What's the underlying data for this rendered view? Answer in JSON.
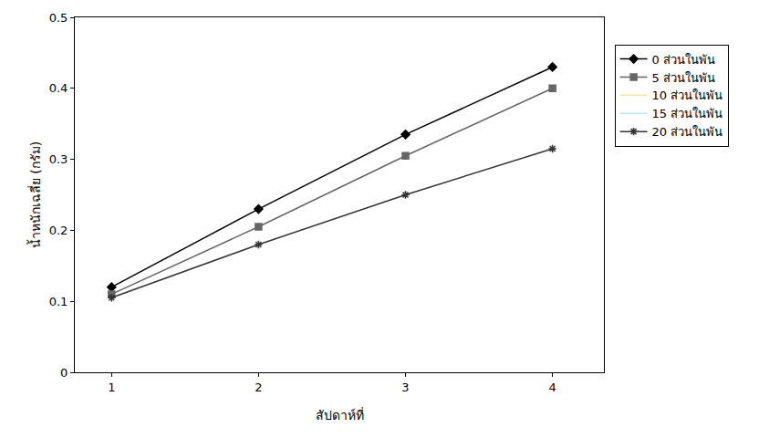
{
  "chart_data": {
    "type": "line",
    "x_label": "สัปดาห์ที่",
    "y_label": "น้ำหนักเฉลี่ย (กรัม)",
    "x": [
      1,
      2,
      3,
      4
    ],
    "xlim": [
      0.75,
      4.35
    ],
    "xticks": [
      1,
      2,
      3,
      4
    ],
    "ylim": [
      0,
      0.5
    ],
    "yticks": [
      0,
      0.1,
      0.2,
      0.3,
      0.4,
      0.5
    ],
    "grid": false,
    "legend": "right",
    "series": [
      {
        "name": "0 ส่วนในพัน",
        "color": "#000000",
        "marker": "diamond",
        "values": [
          0.12,
          0.23,
          0.335,
          0.43
        ]
      },
      {
        "name": "5 ส่วนในพัน",
        "color": "#666666",
        "marker": "square",
        "values": [
          0.11,
          0.205,
          0.305,
          0.4
        ]
      },
      {
        "name": "10 ส่วนในพัน",
        "color": "#f5e6a0",
        "values": [
          null,
          null,
          null,
          null
        ]
      },
      {
        "name": "15 ส่วนในพัน",
        "color": "#bfe3ef",
        "values": [
          null,
          null,
          null,
          null
        ]
      },
      {
        "name": "20 ส่วนในพัน",
        "color": "#333333",
        "marker": "asterisk",
        "values": [
          0.105,
          0.18,
          0.25,
          0.315
        ]
      }
    ]
  }
}
